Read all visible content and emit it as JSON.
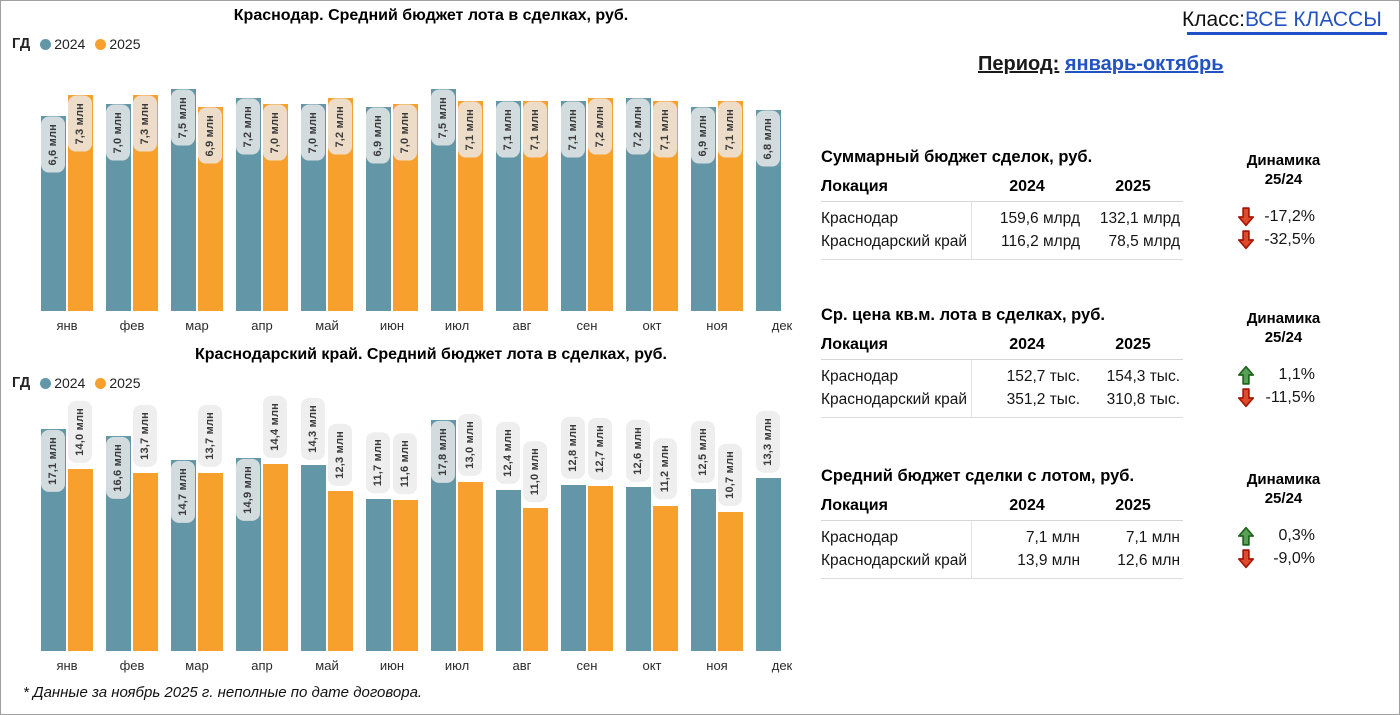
{
  "page": {
    "class_label": "Класс:",
    "class_value": "ВСЕ КЛАССЫ",
    "period_label": "Период:",
    "period_value": "январь-октябрь",
    "footnote": "* Данные за ноябрь 2025 г. неполные по дате договора."
  },
  "colors": {
    "series_2024": "#6397a7",
    "series_2025": "#f7a02d",
    "link_blue": "#2353c3",
    "rule_blue": "#2151c9",
    "down_red_stroke": "#a81505",
    "down_red_fill": "#dd4a2c",
    "up_green_stroke": "#1d641d",
    "up_green_fill": "#58a058"
  },
  "chart_data": [
    {
      "type": "bar",
      "title": "Краснодар. Средний бюджет лота в сделках, руб.",
      "legend_prefix": "ГД",
      "categories": [
        "янв",
        "фев",
        "мар",
        "апр",
        "май",
        "июн",
        "июл",
        "авг",
        "сен",
        "окт",
        "ноя",
        "дек"
      ],
      "series": [
        {
          "name": "2024",
          "values": [
            6.6,
            7.0,
            7.5,
            7.2,
            7.0,
            6.9,
            7.5,
            7.1,
            7.1,
            7.2,
            6.9,
            6.8
          ]
        },
        {
          "name": "2025",
          "values": [
            7.3,
            7.3,
            6.9,
            7.0,
            7.2,
            7.0,
            7.1,
            7.1,
            7.2,
            7.1,
            7.1,
            null
          ]
        }
      ],
      "unit": "млн",
      "ylim": [
        0,
        7.6
      ],
      "grid": false,
      "legend_position": "top-left",
      "xlabel": "",
      "ylabel": ""
    },
    {
      "type": "bar",
      "title": "Краснодарский край. Средний бюджет лота в сделках, руб.",
      "legend_prefix": "ГД",
      "categories": [
        "янв",
        "фев",
        "мар",
        "апр",
        "май",
        "июн",
        "июл",
        "авг",
        "сен",
        "окт",
        "ноя",
        "дек"
      ],
      "series": [
        {
          "name": "2024",
          "values": [
            17.1,
            16.6,
            14.7,
            14.9,
            14.3,
            11.7,
            17.8,
            12.4,
            12.8,
            12.6,
            12.5,
            13.3
          ]
        },
        {
          "name": "2025",
          "values": [
            14.0,
            13.7,
            13.7,
            14.4,
            12.3,
            11.6,
            13.0,
            11.0,
            12.7,
            11.2,
            10.7,
            null
          ]
        }
      ],
      "unit": "млн",
      "ylim": [
        0,
        19.8
      ],
      "grid": false,
      "legend_position": "top-left",
      "xlabel": "",
      "ylabel": ""
    }
  ],
  "tables": [
    {
      "title": "Суммарный бюджет сделок, руб.",
      "columns": [
        "Локация",
        "2024",
        "2025"
      ],
      "dynamics_header": [
        "Динамика",
        "25/24"
      ],
      "rows": [
        {
          "location": "Краснодар",
          "y2024": "159,6 млрд",
          "y2025": "132,1 млрд",
          "dynamics": "-17,2%",
          "direction": "down"
        },
        {
          "location": "Краснодарский край",
          "y2024": "116,2 млрд",
          "y2025": "78,5 млрд",
          "dynamics": "-32,5%",
          "direction": "down"
        }
      ]
    },
    {
      "title": "Ср. цена кв.м. лота в сделках, руб.",
      "columns": [
        "Локация",
        "2024",
        "2025"
      ],
      "dynamics_header": [
        "Динамика",
        "25/24"
      ],
      "rows": [
        {
          "location": "Краснодар",
          "y2024": "152,7 тыс.",
          "y2025": "154,3 тыс.",
          "dynamics": "1,1%",
          "direction": "up"
        },
        {
          "location": "Краснодарский край",
          "y2024": "351,2 тыс.",
          "y2025": "310,8 тыс.",
          "dynamics": "-11,5%",
          "direction": "down"
        }
      ]
    },
    {
      "title": "Средний бюджет сделки с лотом, руб.",
      "columns": [
        "Локация",
        "2024",
        "2025"
      ],
      "dynamics_header": [
        "Динамика",
        "25/24"
      ],
      "rows": [
        {
          "location": "Краснодар",
          "y2024": "7,1 млн",
          "y2025": "7,1 млн",
          "dynamics": "0,3%",
          "direction": "up"
        },
        {
          "location": "Краснодарский край",
          "y2024": "13,9 млн",
          "y2025": "12,6 млн",
          "dynamics": "-9,0%",
          "direction": "down"
        }
      ]
    }
  ]
}
